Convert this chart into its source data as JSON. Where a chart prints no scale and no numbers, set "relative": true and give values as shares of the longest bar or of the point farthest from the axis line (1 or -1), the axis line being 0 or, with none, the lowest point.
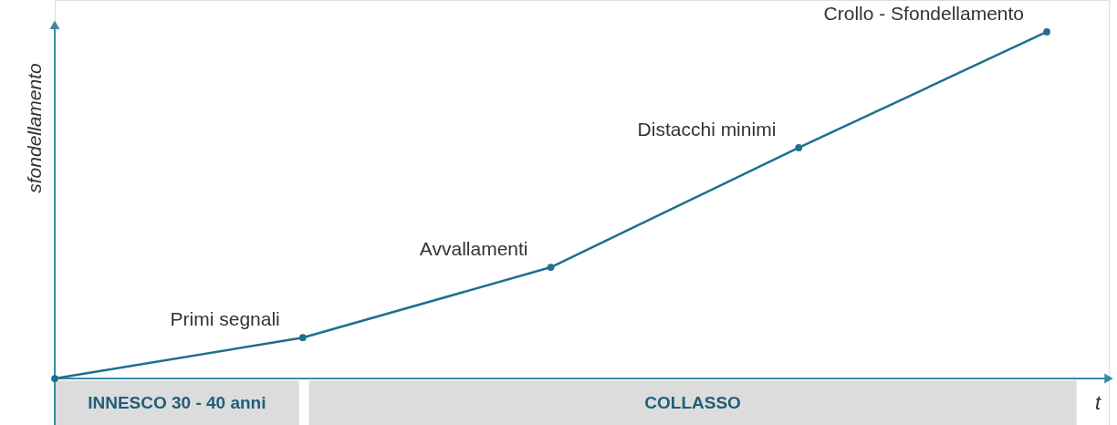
{
  "chart_data": {
    "type": "line",
    "relative": true,
    "ylabel": "sfondellamento",
    "xlabel": "t",
    "categories": [
      null,
      null,
      null,
      null,
      null
    ],
    "series": [
      {
        "color": "#1f6f8f",
        "values": [
          0,
          0.118,
          0.321,
          0.666,
          1
        ]
      }
    ],
    "marker": "circle",
    "line_style": "solid",
    "annotations": [
      "Primi segnali",
      "Avvallamenti",
      "Distacchi minimi",
      "Crollo - Sfondellamento",
      "INNESCO   30 - 40 anni",
      "COLLASSO"
    ]
  }
}
